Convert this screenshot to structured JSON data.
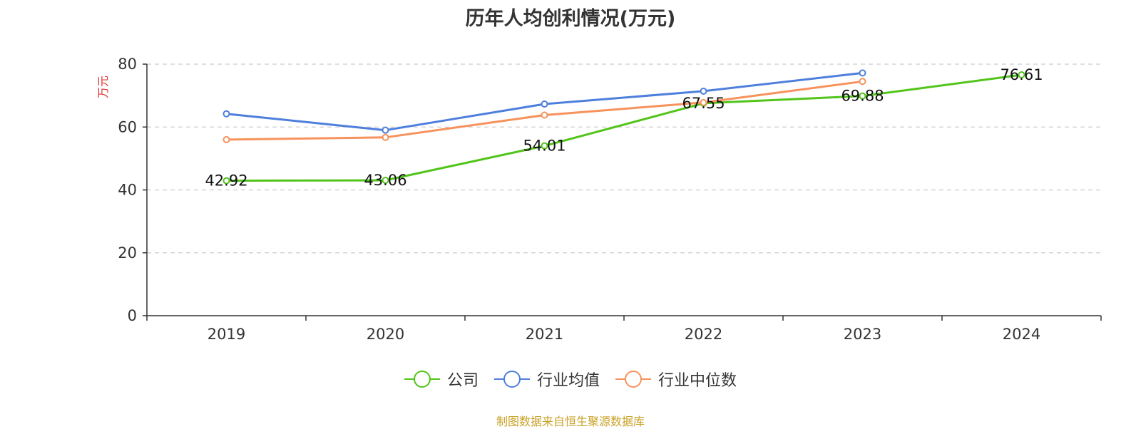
{
  "title": "历年人均创利情况(万元)",
  "source_note": "制图数据来自恒生聚源数据库",
  "colors": {
    "company": "#52c41a",
    "industry_avg": "#4e7fdd",
    "industry_median": "#f7925c"
  },
  "chart_data": {
    "type": "line",
    "title": "历年人均创利情况(万元)",
    "ylabel": "万元",
    "categories": [
      "2019",
      "2020",
      "2021",
      "2022",
      "2023",
      "2024"
    ],
    "ylim": [
      0,
      80
    ],
    "yticks": [
      0,
      20,
      40,
      60,
      80
    ],
    "grid": true,
    "legend_position": "bottom",
    "series": [
      {
        "name": "公司",
        "color": "#52c41a",
        "values": [
          42.92,
          43.06,
          54.01,
          67.55,
          69.88,
          76.61
        ],
        "labels": [
          "42.92",
          "43.06",
          "54.01",
          "67.55",
          "69.88",
          "76.61"
        ]
      },
      {
        "name": "行业均值",
        "color": "#4e7fdd",
        "values": [
          64.2,
          59.0,
          67.3,
          71.4,
          77.2,
          null
        ]
      },
      {
        "name": "行业中位数",
        "color": "#f7925c",
        "values": [
          56.0,
          56.7,
          63.8,
          67.8,
          74.5,
          null
        ]
      }
    ]
  }
}
